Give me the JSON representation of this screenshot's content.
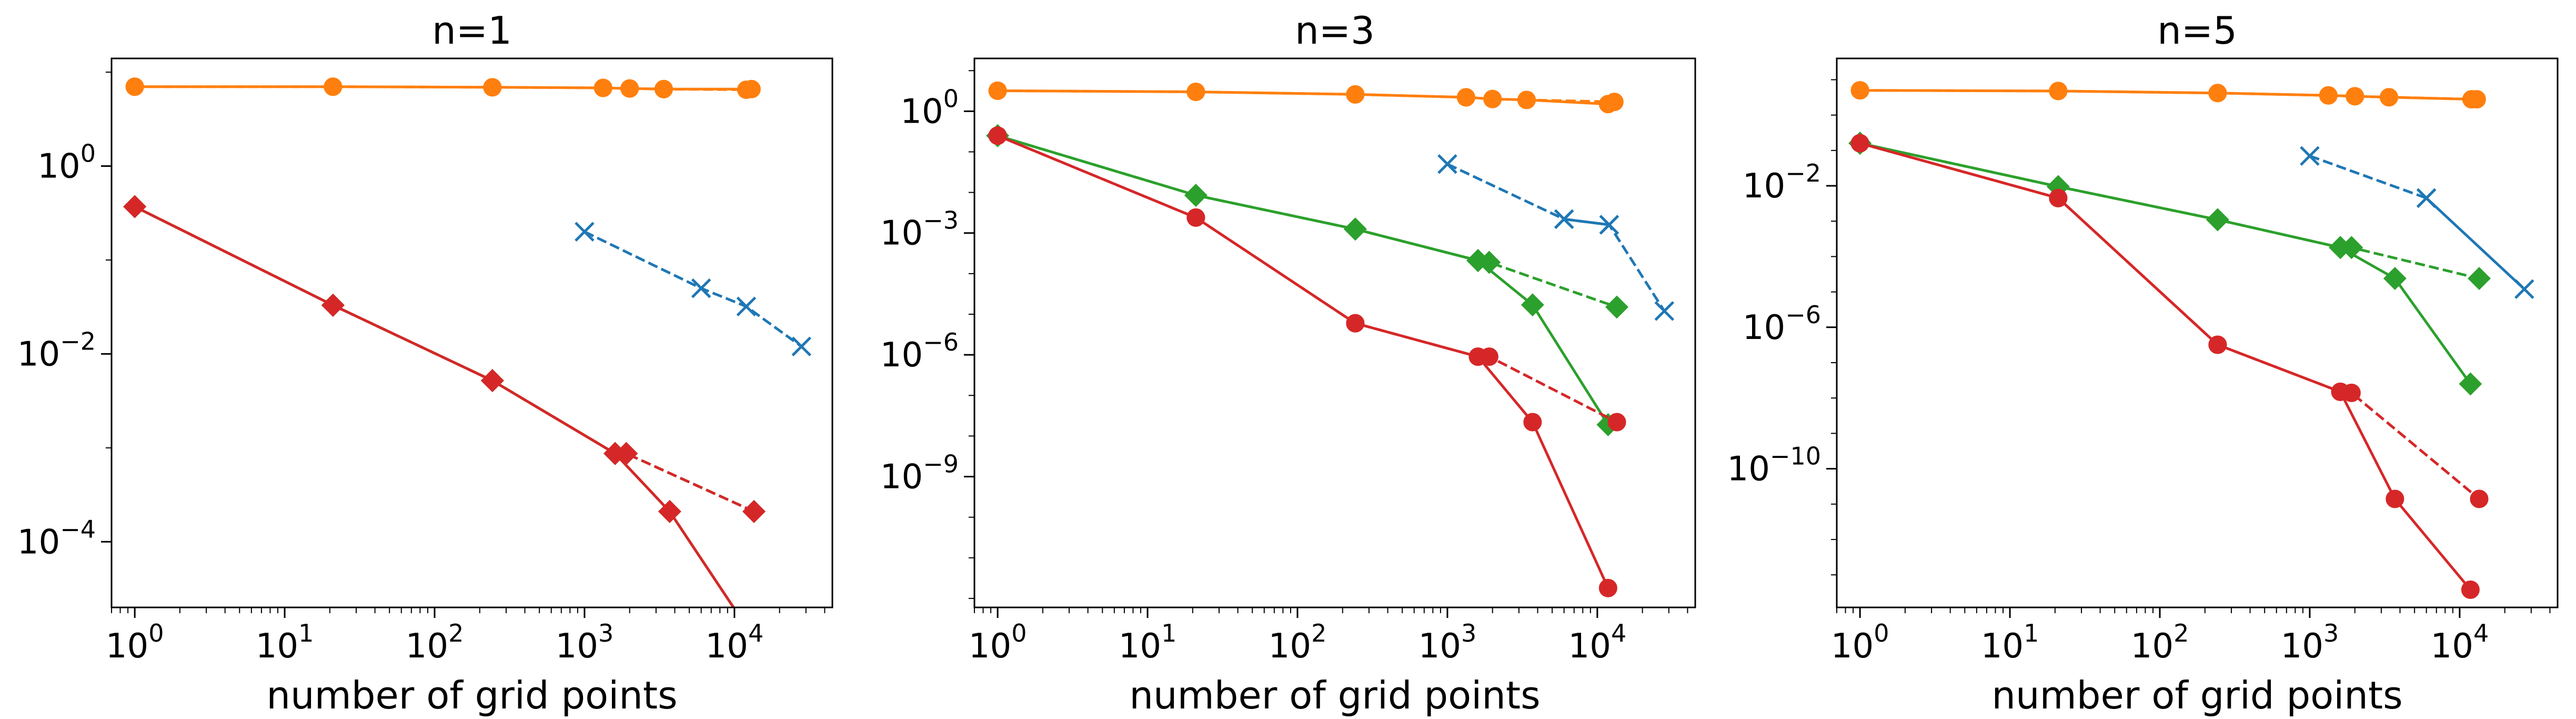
{
  "colors": {
    "blue": "#1f77b4",
    "orange": "#ff7f0e",
    "green": "#2ca02c",
    "red": "#d62728"
  },
  "chart_data": [
    {
      "type": "line",
      "title": "n=1",
      "xlabel": "number of grid points",
      "ylabel": "",
      "xscale": "log",
      "yscale": "log",
      "xlim": [
        0.7,
        45000
      ],
      "ylim": [
        2e-05,
        14
      ],
      "xticks": [
        1,
        10,
        100,
        1000,
        10000
      ],
      "xtick_labels": [
        "10^0",
        "10^1",
        "10^2",
        "10^3",
        "10^4"
      ],
      "yticks": [
        0.0001,
        0.01,
        1
      ],
      "ytick_labels": [
        "10^-4",
        "10^-2",
        "10^0"
      ],
      "grid": false,
      "legend": "none",
      "series": [
        {
          "color": "blue",
          "linestyle": "dashed",
          "marker": "x",
          "x": [
            1000,
            6000,
            12000,
            28000
          ],
          "y": [
            0.2,
            0.05,
            0.032,
            0.012
          ]
        },
        {
          "color": "orange",
          "linestyle": "dashed",
          "marker": "circle",
          "x": [
            1,
            21,
            243,
            1331,
            2000,
            3375,
            12000
          ],
          "y": [
            7.0,
            7.0,
            6.9,
            6.8,
            6.7,
            6.6,
            6.5
          ]
        },
        {
          "color": "orange",
          "linestyle": "solid",
          "marker": "circle",
          "x": [
            1,
            21,
            243,
            1331,
            2000,
            3375,
            13000
          ],
          "y": [
            7.0,
            7.0,
            6.9,
            6.8,
            6.7,
            6.6,
            6.6
          ]
        },
        {
          "color": "green",
          "linestyle": "dashed",
          "marker": "diamond",
          "x": [
            1,
            21,
            243,
            1600,
            1900,
            13500
          ],
          "y": [
            0.37,
            0.033,
            0.0052,
            0.00087,
            0.00087,
            0.00021
          ]
        },
        {
          "color": "red",
          "linestyle": "dashed",
          "marker": "diamond",
          "x": [
            1,
            21,
            243,
            1600,
            1900,
            13500
          ],
          "y": [
            0.37,
            0.033,
            0.0052,
            0.00087,
            0.00087,
            0.00021
          ]
        },
        {
          "color": "green",
          "linestyle": "solid",
          "marker": "diamond",
          "x": [
            1,
            21,
            243,
            1600,
            3700,
            11800
          ],
          "y": [
            0.37,
            0.033,
            0.0052,
            0.00087,
            0.00021,
            1.3e-05
          ]
        },
        {
          "color": "red",
          "linestyle": "solid",
          "marker": "diamond",
          "x": [
            1,
            21,
            243,
            1600,
            3700,
            11800
          ],
          "y": [
            0.37,
            0.033,
            0.0052,
            0.00087,
            0.00021,
            1.3e-05
          ]
        }
      ]
    },
    {
      "type": "line",
      "title": "n=3",
      "xlabel": "number of grid points",
      "ylabel": "",
      "xscale": "log",
      "yscale": "log",
      "xlim": [
        0.7,
        45000
      ],
      "ylim": [
        6e-13,
        20
      ],
      "xticks": [
        1,
        10,
        100,
        1000,
        10000
      ],
      "xtick_labels": [
        "10^0",
        "10^1",
        "10^2",
        "10^3",
        "10^4"
      ],
      "yticks": [
        1e-09,
        1e-06,
        0.001,
        1
      ],
      "ytick_labels": [
        "10^-9",
        "10^-6",
        "10^-3",
        "10^0"
      ],
      "grid": false,
      "legend": "none",
      "series": [
        {
          "color": "blue",
          "linestyle": "dashed",
          "marker": "x",
          "x": [
            1000,
            6000,
            12000,
            28000
          ],
          "y": [
            0.05,
            0.0022,
            0.0016,
            1.2e-05
          ]
        },
        {
          "color": "blue",
          "linestyle": "solid",
          "marker": "x",
          "x": [
            6000,
            12000
          ],
          "y": [
            0.0022,
            0.0016
          ]
        },
        {
          "color": "orange",
          "linestyle": "dashed",
          "marker": "circle",
          "x": [
            1,
            21,
            243,
            1331,
            2000,
            3375,
            13000
          ],
          "y": [
            3.2,
            3.0,
            2.6,
            2.2,
            2.0,
            1.9,
            1.7
          ]
        },
        {
          "color": "orange",
          "linestyle": "solid",
          "marker": "circle",
          "x": [
            1,
            21,
            243,
            1331,
            2000,
            3375,
            11800
          ],
          "y": [
            3.2,
            3.0,
            2.6,
            2.2,
            2.0,
            1.9,
            1.5
          ]
        },
        {
          "color": "green",
          "linestyle": "dashed",
          "marker": "diamond",
          "x": [
            1,
            21,
            243,
            1600,
            1900,
            13500
          ],
          "y": [
            0.25,
            0.0085,
            0.00125,
            0.00021,
            0.00019,
            1.5e-05
          ]
        },
        {
          "color": "green",
          "linestyle": "solid",
          "marker": "diamond",
          "x": [
            1,
            21,
            243,
            1600,
            3700,
            11800
          ],
          "y": [
            0.25,
            0.0085,
            0.00125,
            0.00021,
            1.7e-05,
            1.9e-08
          ]
        },
        {
          "color": "red",
          "linestyle": "dashed",
          "marker": "circle",
          "x": [
            1,
            21,
            243,
            1600,
            1900,
            13500
          ],
          "y": [
            0.25,
            0.0024,
            6e-06,
            9e-07,
            9e-07,
            2.2e-08
          ]
        },
        {
          "color": "red",
          "linestyle": "solid",
          "marker": "circle",
          "x": [
            1,
            21,
            243,
            1600,
            3700,
            11800
          ],
          "y": [
            0.25,
            0.0024,
            6e-06,
            9e-07,
            2.2e-08,
            1.8e-12
          ]
        }
      ]
    },
    {
      "type": "line",
      "title": "n=5",
      "xlabel": "number of grid points",
      "ylabel": "",
      "xscale": "log",
      "yscale": "log",
      "xlim": [
        0.7,
        45000
      ],
      "ylim": [
        1.2e-14,
        40
      ],
      "xticks": [
        1,
        10,
        100,
        1000,
        10000
      ],
      "xtick_labels": [
        "10^0",
        "10^1",
        "10^2",
        "10^3",
        "10^4"
      ],
      "yticks": [
        1e-10,
        1e-06,
        0.01
      ],
      "ytick_labels": [
        "10^-10",
        "10^-6",
        "10^-2"
      ],
      "grid": false,
      "legend": "none",
      "series": [
        {
          "color": "blue",
          "linestyle": "dashed",
          "marker": "x",
          "x": [
            1000,
            6000
          ],
          "y": [
            0.07,
            0.0045
          ]
        },
        {
          "color": "blue",
          "linestyle": "solid",
          "marker": "x",
          "x": [
            6000,
            27000
          ],
          "y": [
            0.0045,
            1.2e-05
          ]
        },
        {
          "color": "orange",
          "linestyle": "dashed",
          "marker": "circle",
          "x": [
            1,
            21,
            243,
            1331,
            2000,
            3375,
            13000
          ],
          "y": [
            5.0,
            4.8,
            4.2,
            3.6,
            3.4,
            3.2,
            2.8
          ]
        },
        {
          "color": "orange",
          "linestyle": "solid",
          "marker": "circle",
          "x": [
            1,
            21,
            243,
            1331,
            2000,
            3375,
            12000
          ],
          "y": [
            5.0,
            4.8,
            4.2,
            3.6,
            3.4,
            3.2,
            2.8
          ]
        },
        {
          "color": "green",
          "linestyle": "dashed",
          "marker": "diamond",
          "x": [
            1,
            21,
            243,
            1600,
            1900,
            13500
          ],
          "y": [
            0.16,
            0.0095,
            0.0011,
            0.00018,
            0.00018,
            2.4e-05
          ]
        },
        {
          "color": "green",
          "linestyle": "solid",
          "marker": "diamond",
          "x": [
            1,
            21,
            243,
            1600,
            3700,
            11800
          ],
          "y": [
            0.16,
            0.0095,
            0.0011,
            0.00018,
            2.4e-05,
            2.5e-08
          ]
        },
        {
          "color": "red",
          "linestyle": "dashed",
          "marker": "circle",
          "x": [
            1,
            21,
            243,
            1600,
            1900,
            13500
          ],
          "y": [
            0.16,
            0.0045,
            3.2e-07,
            1.5e-08,
            1.4e-08,
            1.4e-11
          ]
        },
        {
          "color": "red",
          "linestyle": "solid",
          "marker": "circle",
          "x": [
            1,
            21,
            243,
            1600,
            3700,
            11800
          ],
          "y": [
            0.16,
            0.0045,
            3.2e-07,
            1.5e-08,
            1.4e-11,
            3.8e-14
          ]
        }
      ]
    }
  ]
}
